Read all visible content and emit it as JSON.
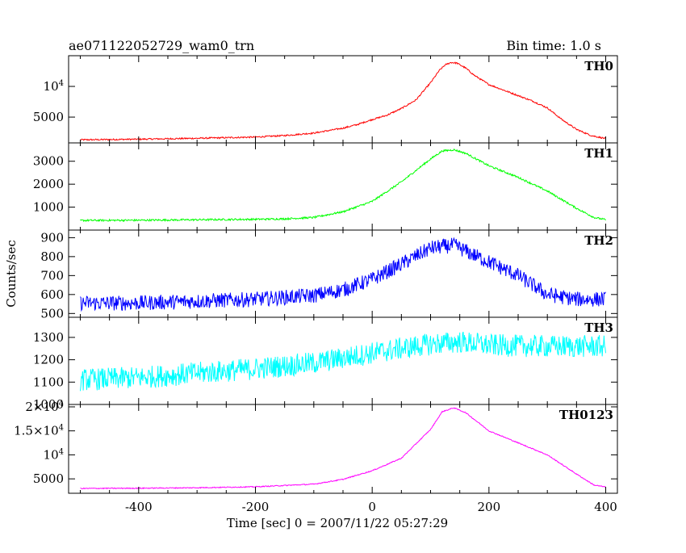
{
  "header": {
    "left_title": "ae071122052729_wam0_trn",
    "right_title": "Bin time: 1.0 s"
  },
  "axes": {
    "xlabel": "Time [sec] 0 = 2007/11/22 05:27:29",
    "ylabel": "Counts/sec",
    "x_ticks": [
      "-400",
      "-200",
      "0",
      "200",
      "400"
    ]
  },
  "colors": {
    "TH0": "#ff0000",
    "TH1": "#00ff00",
    "TH2": "#0000ff",
    "TH3": "#00ffff",
    "TH0123": "#ff00ff"
  },
  "chart_data": [
    {
      "type": "line",
      "name": "TH0",
      "color": "#ff0000",
      "xlim": [
        -520,
        420
      ],
      "ylim": [
        800,
        15000
      ],
      "yticks": [
        {
          "value": 5000,
          "label": "5000"
        },
        {
          "value": 10000,
          "label": "10^4"
        }
      ],
      "noise": 120,
      "x": [
        -500,
        -400,
        -300,
        -200,
        -150,
        -100,
        -50,
        -25,
        0,
        25,
        50,
        75,
        100,
        115,
        125,
        135,
        145,
        160,
        175,
        200,
        225,
        250,
        275,
        300,
        325,
        350,
        375,
        400
      ],
      "y": [
        1300,
        1400,
        1550,
        1750,
        2000,
        2400,
        3200,
        3800,
        4600,
        5300,
        6400,
        7800,
        10600,
        12600,
        13500,
        13900,
        13800,
        13000,
        11800,
        10300,
        9400,
        8500,
        7600,
        6500,
        4600,
        3000,
        2000,
        1500
      ]
    },
    {
      "type": "line",
      "name": "TH1",
      "color": "#00ff00",
      "xlim": [
        -520,
        420
      ],
      "ylim": [
        0,
        3800
      ],
      "yticks": [
        {
          "value": 1000,
          "label": "1000"
        },
        {
          "value": 2000,
          "label": "2000"
        },
        {
          "value": 3000,
          "label": "3000"
        }
      ],
      "noise": 40,
      "x": [
        -500,
        -400,
        -300,
        -200,
        -150,
        -100,
        -50,
        0,
        50,
        100,
        120,
        140,
        160,
        200,
        250,
        300,
        350,
        380,
        400
      ],
      "y": [
        420,
        430,
        450,
        470,
        490,
        550,
        800,
        1250,
        2100,
        3100,
        3450,
        3500,
        3350,
        2800,
        2300,
        1700,
        950,
        550,
        450
      ]
    },
    {
      "type": "line",
      "name": "TH2",
      "color": "#0000ff",
      "xlim": [
        -520,
        420
      ],
      "ylim": [
        480,
        940
      ],
      "yticks": [
        {
          "value": 500,
          "label": "500"
        },
        {
          "value": 600,
          "label": "600"
        },
        {
          "value": 700,
          "label": "700"
        },
        {
          "value": 800,
          "label": "800"
        },
        {
          "value": 900,
          "label": "900"
        }
      ],
      "noise": 40,
      "x": [
        -500,
        -400,
        -300,
        -200,
        -100,
        -50,
        0,
        50,
        100,
        140,
        180,
        250,
        300,
        350,
        400
      ],
      "y": [
        555,
        555,
        565,
        575,
        595,
        625,
        680,
        760,
        845,
        860,
        800,
        700,
        600,
        575,
        575
      ]
    },
    {
      "type": "line",
      "name": "TH3",
      "color": "#00ffff",
      "xlim": [
        -520,
        420
      ],
      "ylim": [
        1000,
        1390
      ],
      "yticks": [
        {
          "value": 1000,
          "label": "1000"
        },
        {
          "value": 1100,
          "label": "1100"
        },
        {
          "value": 1200,
          "label": "1200"
        },
        {
          "value": 1300,
          "label": "1300"
        }
      ],
      "noise": 50,
      "x": [
        -500,
        -400,
        -300,
        -200,
        -100,
        0,
        100,
        150,
        200,
        300,
        400
      ],
      "y": [
        1110,
        1120,
        1140,
        1160,
        1185,
        1230,
        1270,
        1280,
        1265,
        1260,
        1260
      ]
    },
    {
      "type": "line",
      "name": "TH0123",
      "color": "#ff00ff",
      "xlim": [
        -520,
        420
      ],
      "ylim": [
        2000,
        20500
      ],
      "yticks": [
        {
          "value": 5000,
          "label": "5000"
        },
        {
          "value": 10000,
          "label": "10^4"
        },
        {
          "value": 15000,
          "label": "1.5×10^4"
        },
        {
          "value": 20000,
          "label": "2×10^4"
        }
      ],
      "noise": 100,
      "x": [
        -500,
        -400,
        -300,
        -200,
        -100,
        -50,
        0,
        50,
        100,
        120,
        140,
        160,
        200,
        250,
        300,
        350,
        380,
        400
      ],
      "y": [
        3000,
        3050,
        3150,
        3350,
        3900,
        4900,
        6700,
        9300,
        15300,
        19000,
        19800,
        18800,
        15000,
        12500,
        10000,
        6000,
        3700,
        3300
      ]
    }
  ]
}
